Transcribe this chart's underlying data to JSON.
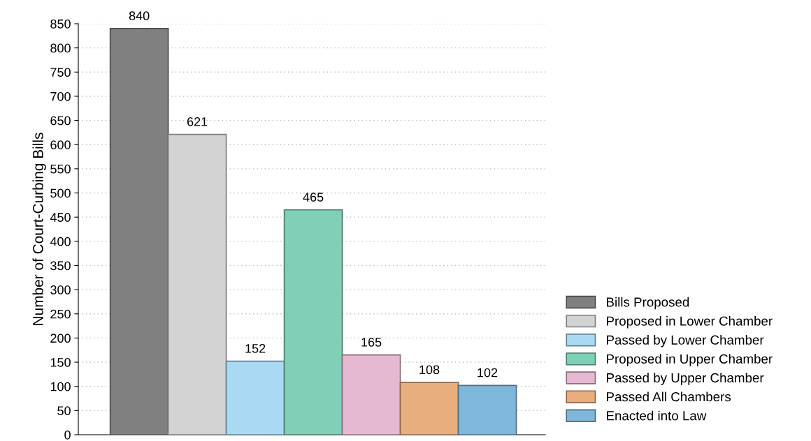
{
  "chart_data": {
    "type": "bar",
    "ylabel": "Number of Court-Curbing Bills",
    "categories": [
      null,
      null,
      null,
      null,
      null,
      null,
      null
    ],
    "series": [
      {
        "name": "Bills Proposed",
        "color": "#808080",
        "values": [
          840,
          null,
          null,
          null,
          null,
          null,
          null
        ]
      },
      {
        "name": "Proposed in Lower Chamber",
        "color": "#d3d3d3",
        "values": [
          null,
          621,
          null,
          null,
          null,
          null,
          null
        ]
      },
      {
        "name": "Passed by Lower Chamber",
        "color": "#aad9f3",
        "values": [
          null,
          null,
          152,
          null,
          null,
          null,
          null
        ]
      },
      {
        "name": "Proposed in Upper Chamber",
        "color": "#7fd0b6",
        "values": [
          null,
          null,
          null,
          465,
          null,
          null,
          null
        ]
      },
      {
        "name": "Passed by Upper Chamber",
        "color": "#e6b9d3",
        "values": [
          null,
          null,
          null,
          null,
          165,
          null,
          null
        ]
      },
      {
        "name": "Passed All Chambers",
        "color": "#e9ae7e",
        "values": [
          null,
          null,
          null,
          null,
          null,
          108,
          null
        ]
      },
      {
        "name": "Enacted into Law",
        "color": "#7fb7da",
        "values": [
          null,
          null,
          null,
          null,
          null,
          null,
          102
        ]
      }
    ],
    "ylim": [
      0,
      850
    ],
    "yticks": [
      0,
      50,
      100,
      150,
      200,
      250,
      300,
      350,
      400,
      450,
      500,
      550,
      600,
      650,
      700,
      750,
      800,
      850
    ],
    "grid": "y",
    "legend": "bottom right",
    "data_labels": true,
    "tick_labels": "y"
  }
}
